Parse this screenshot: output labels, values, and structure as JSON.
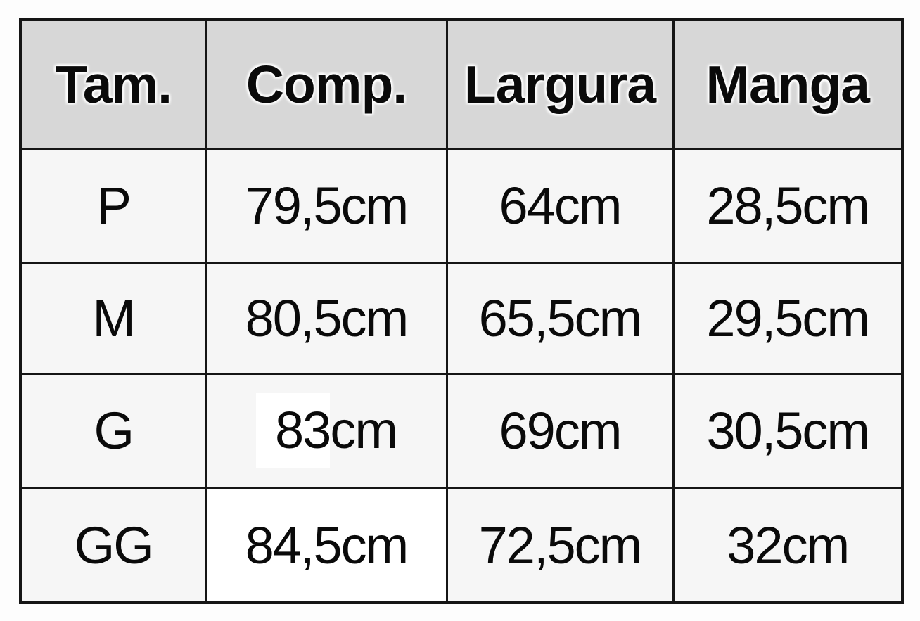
{
  "colors": {
    "page_background": "#fdfdfd",
    "header_background": "#d7d7d7",
    "cell_background": "#f6f6f6",
    "white_patch_background": "#ffffff",
    "border": "#151515",
    "text": "#0a0a0a"
  },
  "chart_data": {
    "type": "table",
    "columns": [
      "Tam.",
      "Comp.",
      "Largura",
      "Manga"
    ],
    "rows": [
      [
        "P",
        "79,5cm",
        "64cm",
        "28,5cm"
      ],
      [
        "M",
        "80,5cm",
        "65,5cm",
        "29,5cm"
      ],
      [
        "G",
        "83cm",
        "69cm",
        "30,5cm"
      ],
      [
        "GG",
        "84,5cm",
        "72,5cm",
        "32cm"
      ]
    ],
    "unit": "cm",
    "decimal_separator": ",",
    "values_cm": {
      "sizes": [
        "P",
        "M",
        "G",
        "GG"
      ],
      "comp": [
        79.5,
        80.5,
        83.0,
        84.5
      ],
      "largura": [
        64.0,
        65.5,
        69.0,
        72.5
      ],
      "manga": [
        28.5,
        29.5,
        30.5,
        32.0
      ]
    },
    "g_row_comp_display": {
      "highlighted_value": "83",
      "unit": "cm"
    },
    "layout_hints": {
      "header_row_shaded": true,
      "grid": true,
      "g_comp_value_on_white_patch": true,
      "gg_comp_cell_white": true
    }
  }
}
